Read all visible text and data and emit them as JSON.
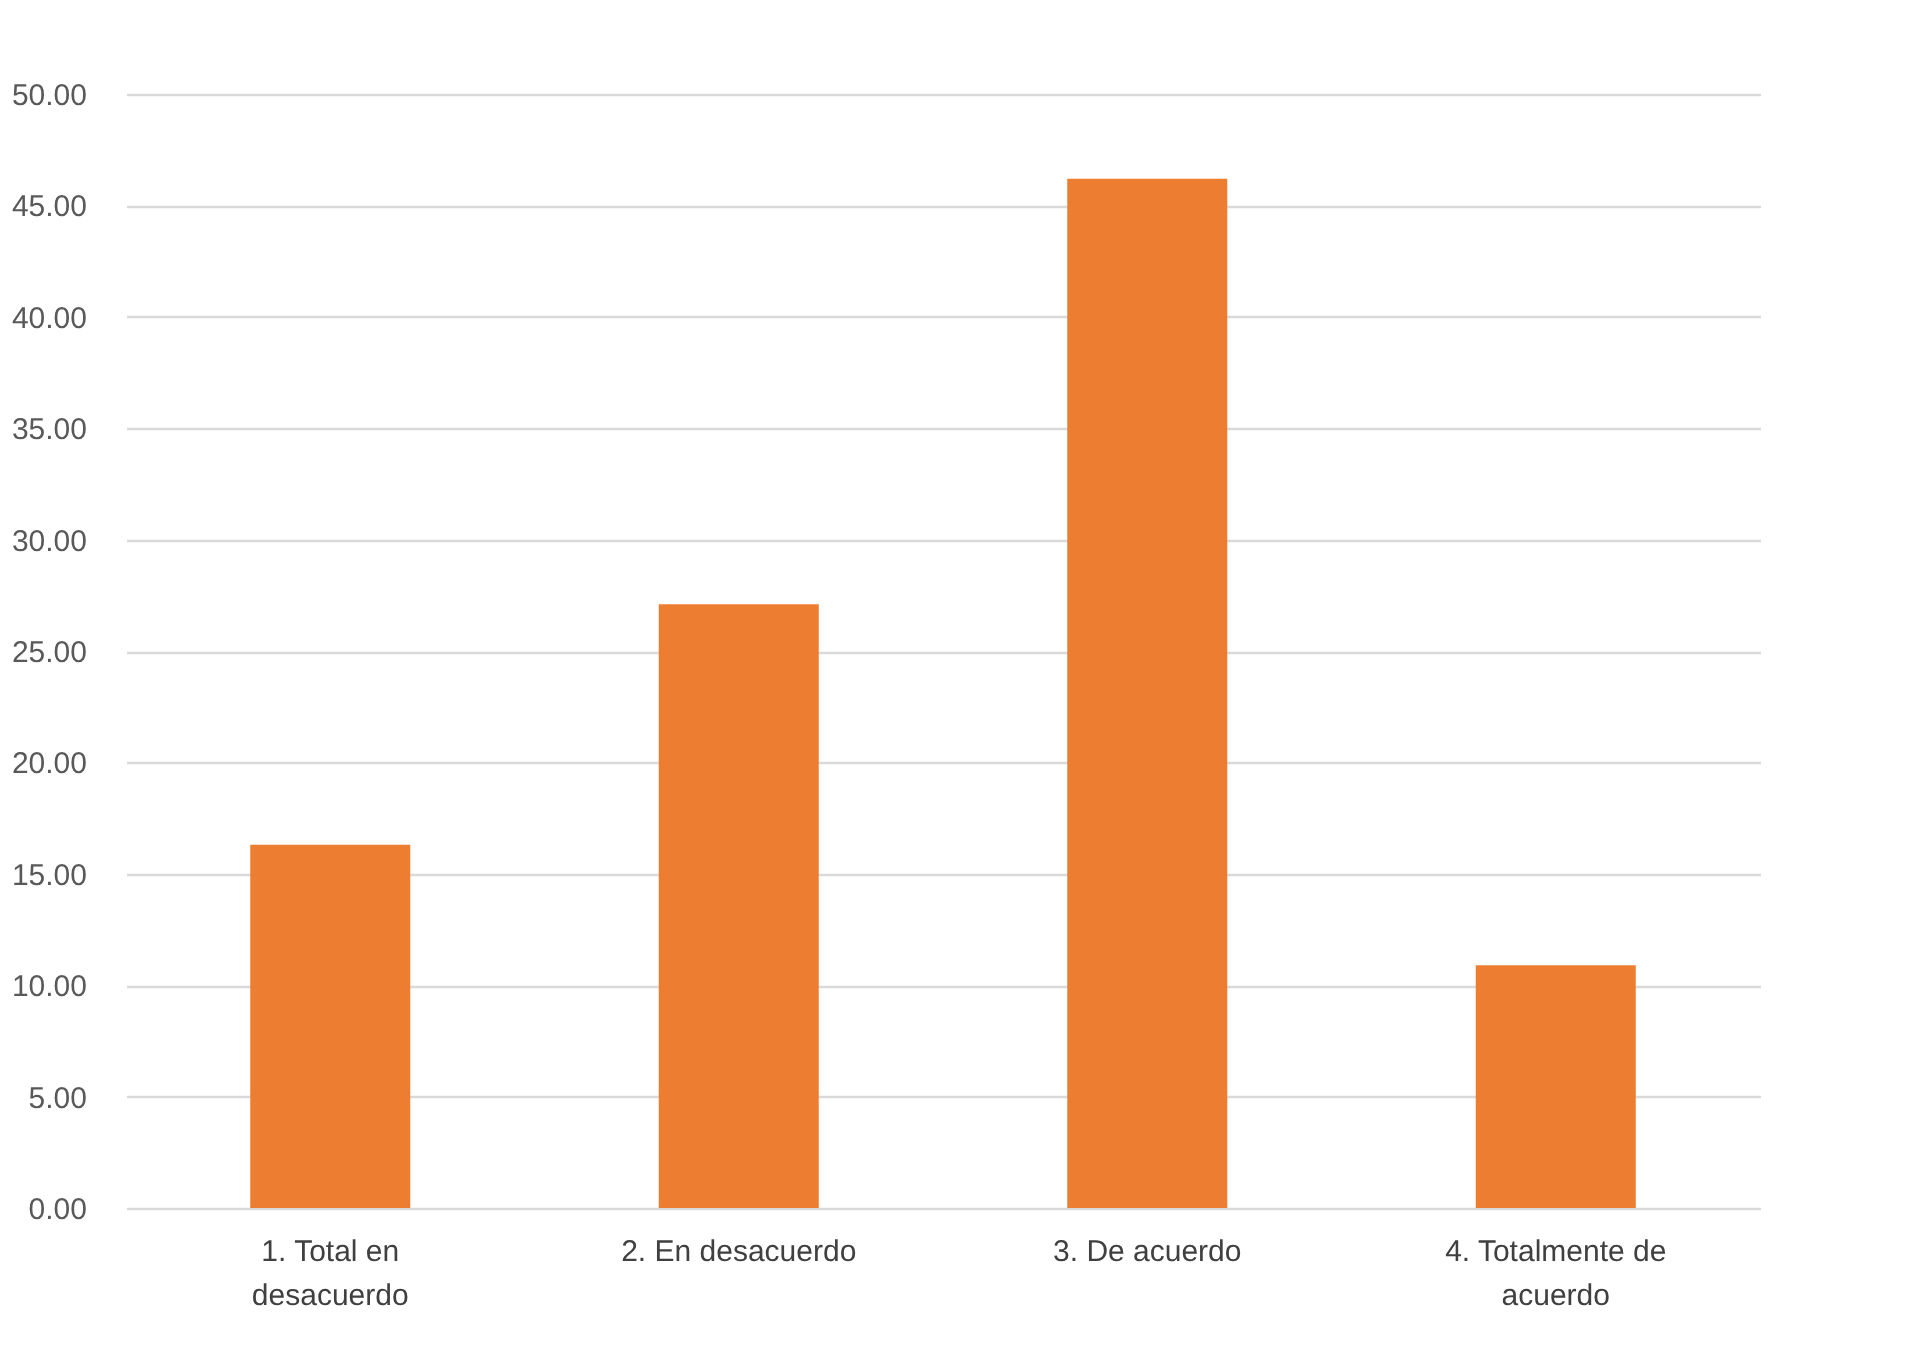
{
  "chart_data": {
    "type": "bar",
    "categories": [
      "1. Total en desacuerdo",
      "2. En desacuerdo",
      "3. De acuerdo",
      "4. Totalmente de acuerdo"
    ],
    "values": [
      16.3,
      27.1,
      46.2,
      10.9
    ],
    "color": "#ed7d31",
    "ylim": [
      0,
      50
    ],
    "yticks": [
      {
        "value": 0,
        "label": "0.00"
      },
      {
        "value": 5,
        "label": "5.00"
      },
      {
        "value": 10,
        "label": "10.00"
      },
      {
        "value": 15,
        "label": "15.00"
      },
      {
        "value": 20,
        "label": "20.00"
      },
      {
        "value": 25,
        "label": "25.00"
      },
      {
        "value": 30,
        "label": "30.00"
      },
      {
        "value": 35,
        "label": "35.00"
      },
      {
        "value": 40,
        "label": "40.00"
      },
      {
        "value": 45,
        "label": "45.00"
      },
      {
        "value": 50,
        "label": "50.00"
      }
    ],
    "grid": "y"
  }
}
